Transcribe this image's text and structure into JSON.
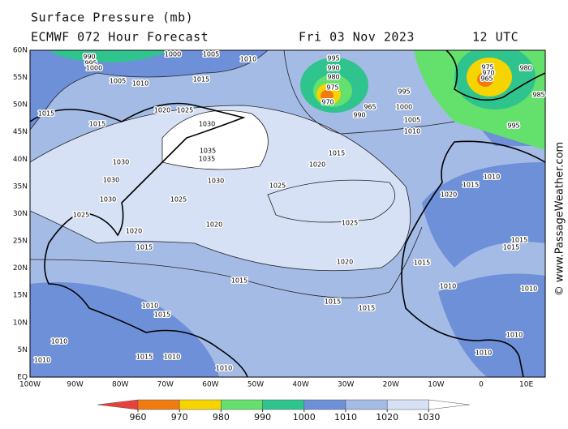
{
  "header": {
    "title": "Surface Pressure (mb)",
    "model": "ECMWF 072 Hour Forecast",
    "date": "Fri 03 Nov 2023",
    "time": "12 UTC"
  },
  "watermark": "© www.PassageWeather.com",
  "lat_labels": [
    "60N",
    "55N",
    "50N",
    "45N",
    "40N",
    "35N",
    "30N",
    "25N",
    "20N",
    "15N",
    "10N",
    "5N",
    "EQ"
  ],
  "lon_labels": [
    "100W",
    "90W",
    "80W",
    "70W",
    "60W",
    "50W",
    "40W",
    "30W",
    "20W",
    "10W",
    "0",
    "10E"
  ],
  "colorbar": {
    "ticks": [
      960,
      970,
      980,
      990,
      1000,
      1010,
      1020,
      1030
    ],
    "colors": [
      "#e8403a",
      "#f07c10",
      "#f6d400",
      "#64e06c",
      "#2fc48e",
      "#6e90d8",
      "#a4bbe6",
      "#d6e1f5",
      "#ffffff"
    ]
  },
  "isobar_labels": [
    "990",
    "995",
    "1000",
    "1000",
    "1005",
    "1010",
    "1005",
    "1010",
    "1015",
    "1015",
    "1015",
    "1020",
    "1025",
    "1030",
    "1035",
    "1035",
    "1030",
    "1030",
    "1030",
    "1030",
    "1025",
    "1025",
    "1025",
    "1020",
    "1015",
    "995",
    "990",
    "980",
    "975",
    "970",
    "965",
    "990",
    "995",
    "1000",
    "1005",
    "1010",
    "1025",
    "1020",
    "1020",
    "1015",
    "1020",
    "1015",
    "1015",
    "1015",
    "1020",
    "1015",
    "1010",
    "1015",
    "1015",
    "1015",
    "975",
    "970",
    "965",
    "980",
    "985",
    "995",
    "1010",
    "1010",
    "1010",
    "1010",
    "1010",
    "1010",
    "1010",
    "1015",
    "1015",
    "1010",
    "1010"
  ]
}
